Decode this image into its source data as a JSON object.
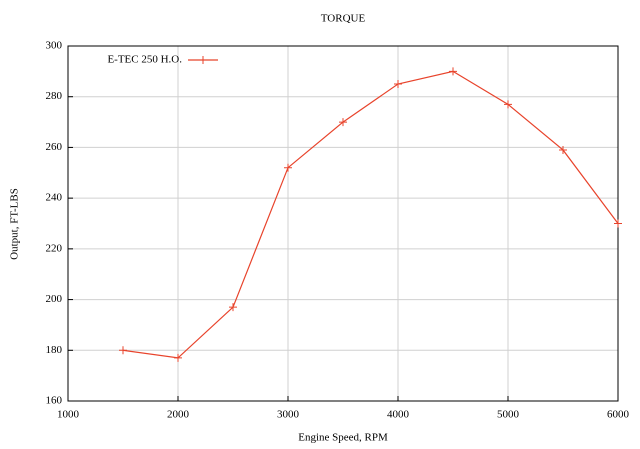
{
  "chart_data": {
    "type": "line",
    "title": "TORQUE",
    "x_label": "Engine Speed, RPM",
    "y_label": "Output, FT-LBS",
    "x": [
      1500,
      2000,
      2500,
      3000,
      3500,
      4000,
      4500,
      5000,
      5500,
      6000
    ],
    "series": [
      {
        "name": "E-TEC 250 H.O.",
        "color": "#e8432b",
        "values": [
          180,
          177,
          197,
          252,
          270,
          285,
          290,
          277,
          259,
          230
        ]
      }
    ],
    "xlim": [
      1000,
      6000
    ],
    "xticks": [
      1000,
      2000,
      3000,
      4000,
      5000,
      6000
    ],
    "ylim": [
      160,
      300
    ],
    "yticks": [
      160,
      180,
      200,
      220,
      240,
      260,
      280,
      300
    ],
    "grid": true,
    "legend": "upper left"
  }
}
